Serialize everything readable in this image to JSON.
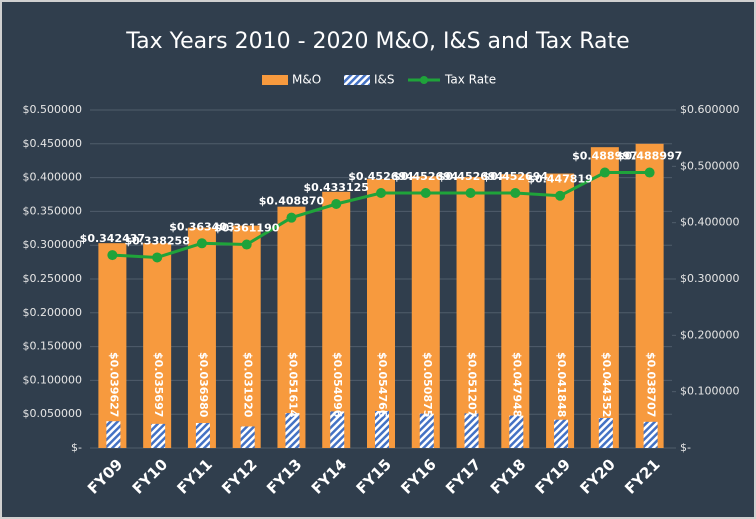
{
  "chart_data": {
    "type": "bar",
    "title": "Tax Years 2010 - 2020 M&O, I&S and Tax Rate",
    "categories": [
      "FY09",
      "FY10",
      "FY11",
      "FY12",
      "FY13",
      "FY14",
      "FY15",
      "FY16",
      "FY17",
      "FY18",
      "FY19",
      "FY20",
      "FY21"
    ],
    "series": [
      {
        "name": "M&O",
        "color": "#f79a3e",
        "axis": "y",
        "values": [
          0.303,
          0.303,
          0.326,
          0.329,
          0.357,
          0.379,
          0.398,
          0.402,
          0.401,
          0.405,
          0.406,
          0.445,
          0.45
        ]
      },
      {
        "name": "I&S",
        "color": "#4472c4",
        "axis": "y",
        "values": [
          0.039627,
          0.035697,
          0.03698,
          0.03192,
          0.051614,
          0.054096,
          0.054766,
          0.050875,
          0.051207,
          0.047948,
          0.041848,
          0.044352,
          0.038707
        ],
        "value_labels": [
          "$0.039627",
          "$0.035697",
          "$0.036980",
          "$0.031920",
          "$0.051614",
          "$0.054096",
          "$0.054766",
          "$0.050875",
          "$0.051207",
          "$0.047948",
          "$0.041848",
          "$0.044352",
          "$0.038707"
        ]
      },
      {
        "name": "Tax Rate",
        "color": "#1fa33a",
        "axis": "y2",
        "values": [
          0.342437,
          0.338258,
          0.363403,
          0.36119,
          0.40887,
          0.433125,
          0.452694,
          0.452694,
          0.452694,
          0.452694,
          0.447819,
          0.488997,
          0.488997
        ],
        "value_labels": [
          "$0.342437",
          "$0.338258",
          "$0.363403",
          "$0.361190",
          "$0.408870",
          "$0.433125",
          "$0.452694",
          "$0.452694",
          "$0.452694",
          "$0.452694",
          "$0.447819",
          "$0.488997",
          "$0.488997"
        ]
      }
    ],
    "ylim": [
      0,
      0.5
    ],
    "yticks": [
      {
        "value": 0,
        "label": "$-"
      },
      {
        "value": 0.05,
        "label": "$0.050000"
      },
      {
        "value": 0.1,
        "label": "$0.100000"
      },
      {
        "value": 0.15,
        "label": "$0.150000"
      },
      {
        "value": 0.2,
        "label": "$0.200000"
      },
      {
        "value": 0.25,
        "label": "$0.250000"
      },
      {
        "value": 0.3,
        "label": "$0.300000"
      },
      {
        "value": 0.35,
        "label": "$0.350000"
      },
      {
        "value": 0.4,
        "label": "$0.400000"
      },
      {
        "value": 0.45,
        "label": "$0.450000"
      },
      {
        "value": 0.5,
        "label": "$0.500000"
      }
    ],
    "y2lim": [
      0,
      0.6
    ],
    "y2ticks": [
      {
        "value": 0,
        "label": "$-"
      },
      {
        "value": 0.1,
        "label": "$0.100000"
      },
      {
        "value": 0.2,
        "label": "$0.200000"
      },
      {
        "value": 0.3,
        "label": "$0.300000"
      },
      {
        "value": 0.4,
        "label": "$0.400000"
      },
      {
        "value": 0.5,
        "label": "$0.500000"
      },
      {
        "value": 0.6,
        "label": "$0.600000"
      }
    ],
    "grid": true,
    "legend": "top"
  }
}
